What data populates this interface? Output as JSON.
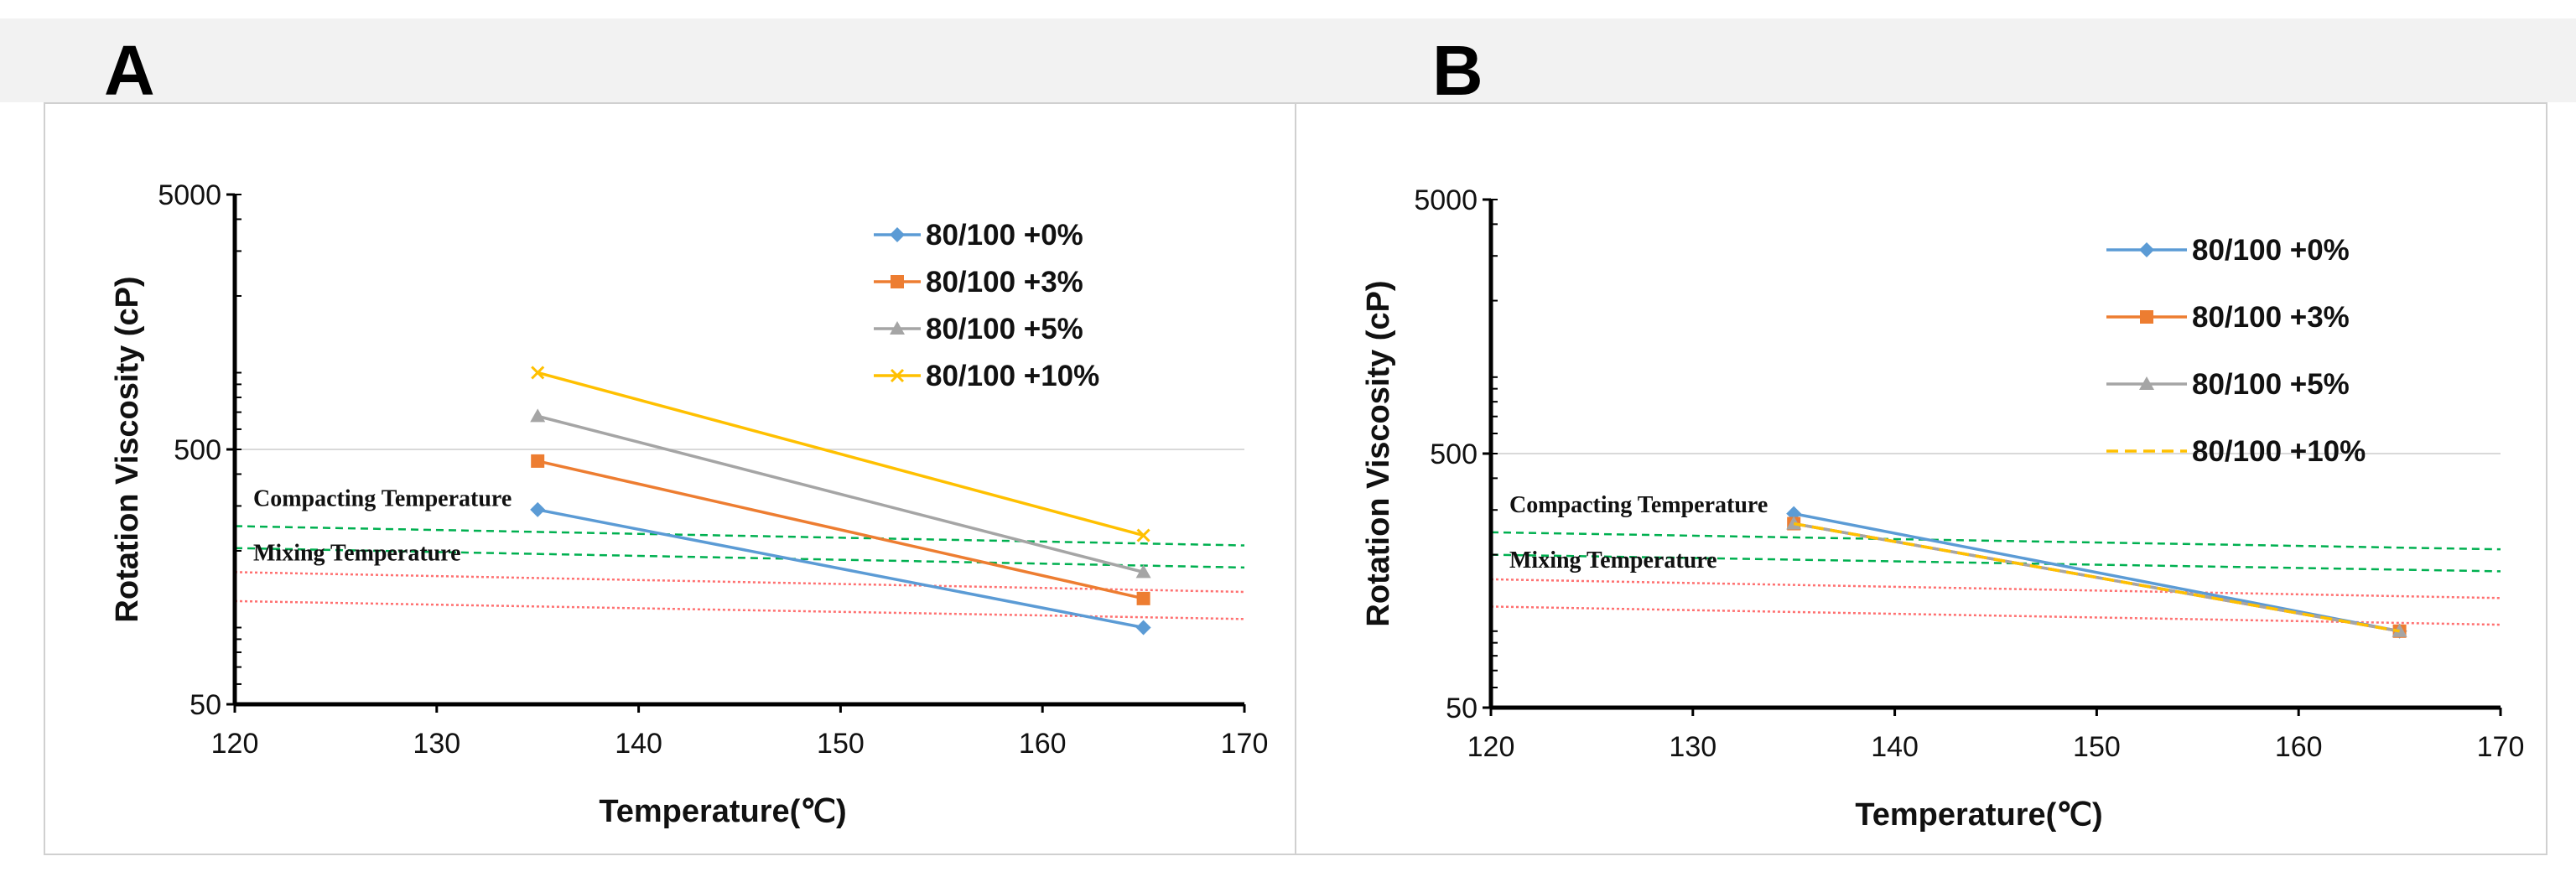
{
  "colors": {
    "s0": "#5b9bd5",
    "s1": "#ed7d31",
    "s2": "#a5a5a5",
    "s3": "#ffc000",
    "compacting": "#00b050",
    "mixing": "#ff7070",
    "grid": "#d9d9d9"
  },
  "chart_data": [
    {
      "id": "A",
      "type": "line",
      "panel_label": "A",
      "xlabel": "Temperature(℃)",
      "ylabel": "Rotation Viscosity (cP)",
      "xlim": [
        120,
        170
      ],
      "ylim": [
        50,
        5000
      ],
      "yscale": "log",
      "xticks": [
        120,
        130,
        140,
        150,
        160,
        170
      ],
      "yticks": [
        50,
        500,
        5000
      ],
      "legend": "top-right",
      "series": [
        {
          "name": "80/100 +0%",
          "marker": "diamond",
          "dash": false,
          "x": [
            135,
            165
          ],
          "y": [
            290,
            100
          ]
        },
        {
          "name": "80/100 +3%",
          "marker": "square",
          "dash": false,
          "x": [
            135,
            165
          ],
          "y": [
            450,
            130
          ]
        },
        {
          "name": "80/100 +5%",
          "marker": "triangle",
          "dash": false,
          "x": [
            135,
            165
          ],
          "y": [
            675,
            165
          ]
        },
        {
          "name": "80/100 +10%",
          "marker": "cross",
          "dash": false,
          "x": [
            135,
            165
          ],
          "y": [
            1000,
            230
          ]
        }
      ],
      "reference_bands": [
        {
          "label": "Compacting Temperature",
          "color": "compacting",
          "lines": [
            {
              "x": [
                120,
                170
              ],
              "y": [
                250,
                210
              ]
            },
            {
              "x": [
                120,
                170
              ],
              "y": [
                205,
                172
              ]
            }
          ]
        },
        {
          "label": "Mixing Temperature",
          "color": "mixing",
          "lines": [
            {
              "x": [
                120,
                170
              ],
              "y": [
                165,
                138
              ]
            },
            {
              "x": [
                120,
                170
              ],
              "y": [
                127,
                108
              ]
            }
          ]
        }
      ]
    },
    {
      "id": "B",
      "type": "line",
      "panel_label": "B",
      "xlabel": "Temperature(℃)",
      "ylabel": "Rotation Viscosity (cP)",
      "xlim": [
        120,
        170
      ],
      "ylim": [
        50,
        5000
      ],
      "yscale": "log",
      "xticks": [
        120,
        130,
        140,
        150,
        160,
        170
      ],
      "yticks": [
        50,
        500,
        5000
      ],
      "legend": "top-right",
      "series": [
        {
          "name": "80/100 +0%",
          "marker": "diamond",
          "dash": false,
          "x": [
            135,
            165
          ],
          "y": [
            290,
            100
          ]
        },
        {
          "name": "80/100 +3%",
          "marker": "square",
          "dash": false,
          "x": [
            135,
            165
          ],
          "y": [
            265,
            100
          ]
        },
        {
          "name": "80/100 +5%",
          "marker": "triangle",
          "dash": false,
          "x": [
            135,
            165
          ],
          "y": [
            265,
            100
          ]
        },
        {
          "name": "80/100 +10%",
          "marker": "none",
          "dash": true,
          "x": [
            135,
            165
          ],
          "y": [
            265,
            100
          ]
        }
      ],
      "reference_bands": [
        {
          "label": "Compacting Temperature",
          "color": "compacting",
          "lines": [
            {
              "x": [
                120,
                170
              ],
              "y": [
                245,
                210
              ]
            },
            {
              "x": [
                120,
                170
              ],
              "y": [
                200,
                172
              ]
            }
          ]
        },
        {
          "label": "Mixing Temperature",
          "color": "mixing",
          "lines": [
            {
              "x": [
                120,
                170
              ],
              "y": [
                160,
                135
              ]
            },
            {
              "x": [
                120,
                170
              ],
              "y": [
                125,
                106
              ]
            }
          ]
        }
      ]
    }
  ]
}
